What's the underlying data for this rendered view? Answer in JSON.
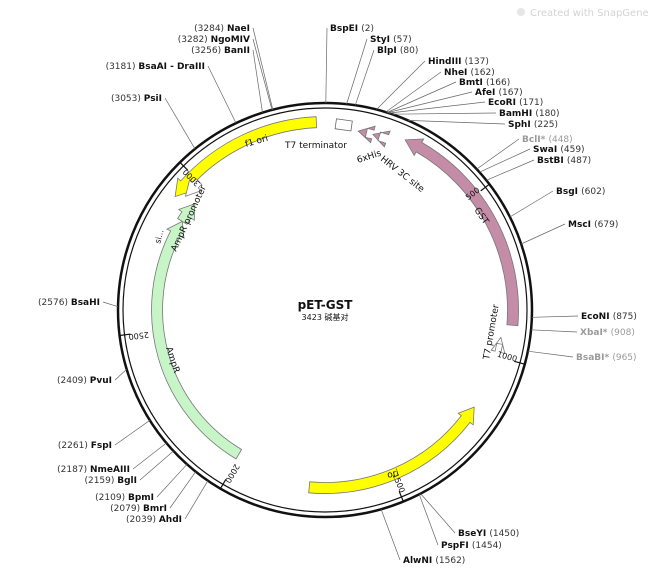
{
  "watermark": "Created with SnapGene®",
  "plasmid": {
    "name": "pET-GST",
    "length_label": "3423 碱基对",
    "length": 3423
  },
  "ticks": [
    "500",
    "1000",
    "1500",
    "2000",
    "2500",
    "3000"
  ],
  "features": [
    {
      "name": "f1 ori",
      "color": "#ffff00"
    },
    {
      "name": "T7 terminator",
      "color": "#ffffff"
    },
    {
      "name": "6xHis",
      "color": "#c58ca8"
    },
    {
      "name": "HRV 3C site",
      "color": "#c58ca8"
    },
    {
      "name": "GST",
      "color": "#c58ca8"
    },
    {
      "name": "T7 promoter",
      "color": "#ffffff"
    },
    {
      "name": "ori",
      "color": "#ffff00"
    },
    {
      "name": "AmpR",
      "color": "#c8f5c8"
    },
    {
      "name": "AmpR promoter",
      "color": "#ffffff"
    },
    {
      "name": "si...",
      "color": "#c8f5c8"
    }
  ],
  "sites": [
    {
      "pos": "(3284)",
      "name": "NaeI",
      "grey": false
    },
    {
      "pos": "(3282)",
      "name": "NgoMIV",
      "grey": false
    },
    {
      "pos": "(3256)",
      "name": "BanII",
      "grey": false
    },
    {
      "pos": "(3181)",
      "name": "BsaAI - DraIII",
      "grey": false
    },
    {
      "pos": "(3053)",
      "name": "PsiI",
      "grey": false
    },
    {
      "pos": "(2576)",
      "name": "BsaHI",
      "grey": false
    },
    {
      "pos": "(2409)",
      "name": "PvuI",
      "grey": false
    },
    {
      "pos": "(2261)",
      "name": "FspI",
      "grey": false
    },
    {
      "pos": "(2187)",
      "name": "NmeAIII",
      "grey": false
    },
    {
      "pos": "(2159)",
      "name": "BglI",
      "grey": false
    },
    {
      "pos": "(2109)",
      "name": "BpmI",
      "grey": false
    },
    {
      "pos": "(2079)",
      "name": "BmrI",
      "grey": false
    },
    {
      "pos": "(2039)",
      "name": "AhdI",
      "grey": false
    },
    {
      "pos": "(2)",
      "name": "BspEI",
      "grey": false
    },
    {
      "pos": "(57)",
      "name": "StyI",
      "grey": false
    },
    {
      "pos": "(80)",
      "name": "BlpI",
      "grey": false
    },
    {
      "pos": "(137)",
      "name": "HindIII",
      "grey": false
    },
    {
      "pos": "(162)",
      "name": "NheI",
      "grey": false
    },
    {
      "pos": "(166)",
      "name": "BmtI",
      "grey": false
    },
    {
      "pos": "(167)",
      "name": "AfeI",
      "grey": false
    },
    {
      "pos": "(171)",
      "name": "EcoRI",
      "grey": false
    },
    {
      "pos": "(180)",
      "name": "BamHI",
      "grey": false
    },
    {
      "pos": "(225)",
      "name": "SphI",
      "grey": false
    },
    {
      "pos": "(448)",
      "name": "BclI*",
      "grey": true
    },
    {
      "pos": "(459)",
      "name": "SwaI",
      "grey": false
    },
    {
      "pos": "(487)",
      "name": "BstBI",
      "grey": false
    },
    {
      "pos": "(602)",
      "name": "BsgI",
      "grey": false
    },
    {
      "pos": "(679)",
      "name": "MscI",
      "grey": false
    },
    {
      "pos": "(875)",
      "name": "EcoNI",
      "grey": false
    },
    {
      "pos": "(908)",
      "name": "XbaI*",
      "grey": true
    },
    {
      "pos": "(965)",
      "name": "BsaBI*",
      "grey": true
    },
    {
      "pos": "(1450)",
      "name": "BseYI",
      "grey": false
    },
    {
      "pos": "(1454)",
      "name": "PspFI",
      "grey": false
    },
    {
      "pos": "(1562)",
      "name": "AlwNI",
      "grey": false
    }
  ]
}
